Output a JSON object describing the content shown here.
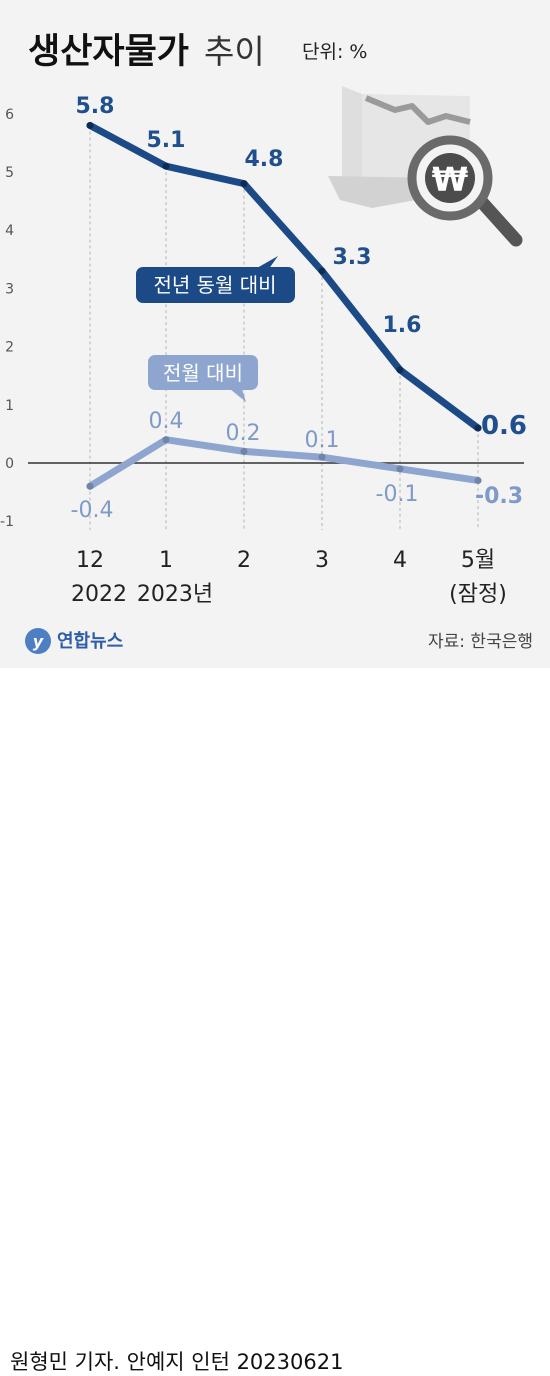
{
  "header": {
    "title": "생산자물가",
    "title_suffix": "추이",
    "unit": "단위: %"
  },
  "footer": {
    "source": "자료: 한국은행",
    "brand": "연합뉴스",
    "credit": "원형민 기자. 안예지 인턴  20230621"
  },
  "colors": {
    "series_yoy": "#1b4a86",
    "series_mom": "#8ea6cf",
    "label_yoy": "#1f4f8c",
    "label_mom": "#7f9ac8",
    "zero_line": "#333333",
    "gridline": "#b5b5b5",
    "background": "#f3f3f3"
  },
  "chart_data": {
    "type": "line",
    "categories": [
      [
        "12",
        "2022"
      ],
      [
        "1",
        "2023년"
      ],
      [
        "2",
        ""
      ],
      [
        "3",
        ""
      ],
      [
        "4",
        ""
      ],
      [
        "5월",
        "(잠정)"
      ]
    ],
    "ylim": [
      -1,
      6
    ],
    "yticks": [
      -1,
      0,
      1,
      2,
      3,
      4,
      5,
      6
    ],
    "grid": "vertical-dashed",
    "series": [
      {
        "name": "전년 동월 대비",
        "values": [
          5.8,
          5.1,
          4.8,
          3.3,
          1.6,
          0.6
        ],
        "labels": [
          "5.8",
          "5.1",
          "4.8",
          "3.3",
          "1.6",
          "0.6"
        ]
      },
      {
        "name": "전월 대비",
        "values": [
          -0.4,
          0.4,
          0.2,
          0.1,
          -0.1,
          -0.3
        ],
        "labels": [
          "-0.4",
          "0.4",
          "0.2",
          "0.1",
          "-0.1",
          "-0.3"
        ]
      }
    ]
  }
}
